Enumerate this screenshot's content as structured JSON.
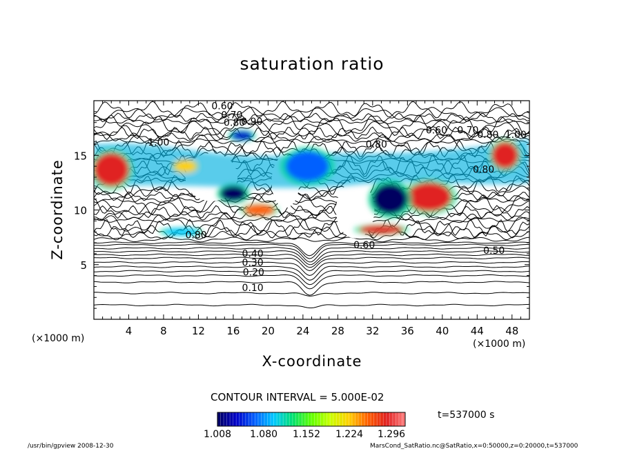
{
  "chart_data": {
    "type": "heatmap",
    "title": "saturation ratio",
    "xlabel": "X-coordinate",
    "ylabel": "Z-coordinate",
    "x_unit": "(×1000 m)",
    "xlim": [
      0,
      50
    ],
    "ylim": [
      0,
      20
    ],
    "x_ticks": [
      4,
      8,
      12,
      16,
      20,
      24,
      28,
      32,
      36,
      40,
      44,
      48
    ],
    "y_ticks": [
      5,
      10,
      15
    ],
    "contour_interval_text": "CONTOUR INTERVAL = 5.000E-02",
    "time_text": "t=537000 s",
    "colorbar": {
      "min": 1.008,
      "max": 1.32,
      "ticks": [
        "1.008",
        "1.080",
        "1.152",
        "1.224",
        "1.296"
      ],
      "colors": [
        "#000060",
        "#0000c8",
        "#0060ff",
        "#00c8ff",
        "#00e070",
        "#60ff00",
        "#c8ff00",
        "#ffd000",
        "#ff6000",
        "#e02020",
        "#ff8080"
      ]
    },
    "contour_labels": [
      {
        "text": "0.60",
        "x": 13.5,
        "z": 19.2
      },
      {
        "text": "0.70",
        "x": 14.6,
        "z": 18.4
      },
      {
        "text": "0.80",
        "x": 14.9,
        "z": 17.7
      },
      {
        "text": "0.90",
        "x": 16.9,
        "z": 17.8
      },
      {
        "text": "1.00",
        "x": 6.2,
        "z": 15.9
      },
      {
        "text": "0.60",
        "x": 38.1,
        "z": 17.0
      },
      {
        "text": "0.70",
        "x": 41.7,
        "z": 17.0
      },
      {
        "text": "0.80",
        "x": 44.0,
        "z": 16.6
      },
      {
        "text": "1.00",
        "x": 47.2,
        "z": 16.6
      },
      {
        "text": "0.80",
        "x": 31.2,
        "z": 15.7
      },
      {
        "text": "0.80",
        "x": 43.5,
        "z": 13.4
      },
      {
        "text": "0.60",
        "x": 29.8,
        "z": 6.5
      },
      {
        "text": "0.50",
        "x": 44.7,
        "z": 6.0
      },
      {
        "text": "0.80",
        "x": 10.5,
        "z": 7.4
      },
      {
        "text": "0.40",
        "x": 17.0,
        "z": 5.7
      },
      {
        "text": "0.30",
        "x": 17.0,
        "z": 4.9
      },
      {
        "text": "0.20",
        "x": 17.1,
        "z": 4.0
      },
      {
        "text": "0.10",
        "x": 17.0,
        "z": 2.6
      }
    ],
    "saturated_regions": [
      {
        "x": 2,
        "z": 13.7,
        "w": 4,
        "h": 3.0,
        "level": 1.29
      },
      {
        "x": 10.5,
        "z": 14.0,
        "w": 2.5,
        "h": 1.0,
        "level": 1.22
      },
      {
        "x": 17.0,
        "z": 16.8,
        "w": 2.5,
        "h": 0.8,
        "level": 1.05
      },
      {
        "x": 24.5,
        "z": 14.0,
        "w": 5,
        "h": 2.8,
        "level": 1.08
      },
      {
        "x": 38.5,
        "z": 11.2,
        "w": 5,
        "h": 2.6,
        "level": 1.29
      },
      {
        "x": 47.2,
        "z": 15.0,
        "w": 3,
        "h": 2.4,
        "level": 1.29
      },
      {
        "x": 19.0,
        "z": 10.0,
        "w": 3.5,
        "h": 1.0,
        "level": 1.25
      },
      {
        "x": 33.0,
        "z": 8.2,
        "w": 5,
        "h": 0.8,
        "level": 1.27
      },
      {
        "x": 10.0,
        "z": 8.0,
        "w": 4,
        "h": 0.6,
        "level": 1.1
      },
      {
        "x": 34.0,
        "z": 11.0,
        "w": 4,
        "h": 2.8,
        "level": 1.03
      },
      {
        "x": 16.0,
        "z": 11.5,
        "w": 3,
        "h": 1.4,
        "level": 1.02
      }
    ]
  },
  "footer": {
    "left": "/usr/bin/gpview   2008-12-30",
    "right": "MarsCond_SatRatio.nc@SatRatio,x=0:50000,z=0:20000,t=537000"
  }
}
